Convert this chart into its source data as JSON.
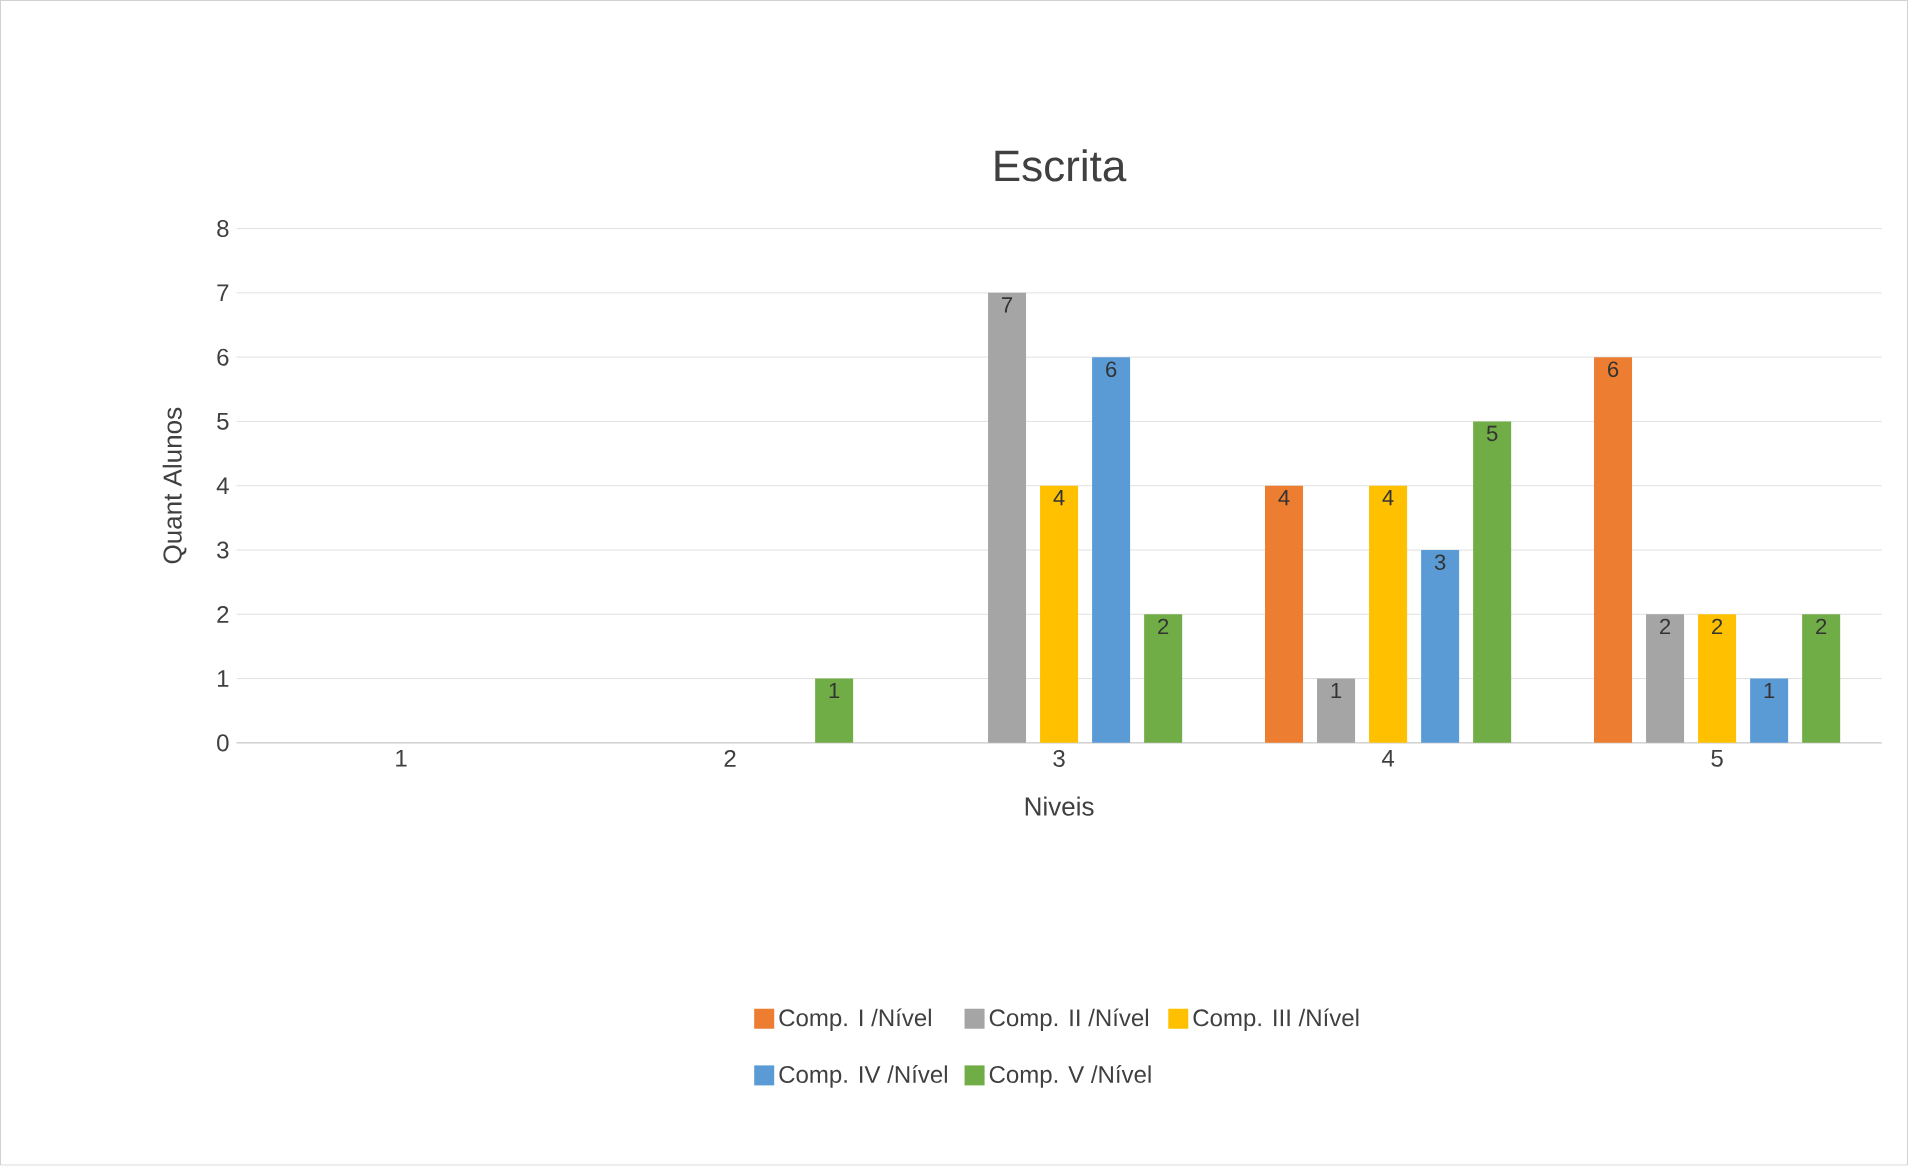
{
  "chart_data": {
    "type": "bar",
    "title": "Escrita",
    "xlabel": "Niveis",
    "ylabel": "Quant Alunos",
    "categories": [
      "1",
      "2",
      "3",
      "4",
      "5"
    ],
    "series": [
      {
        "name": "Comp. I /Nível",
        "color": "#ed7d31",
        "values": [
          0,
          0,
          0,
          4,
          6
        ],
        "value_labels": [
          null,
          null,
          null,
          "4",
          "6"
        ]
      },
      {
        "name": "Comp. II /Nível",
        "color": "#a5a5a5",
        "values": [
          0,
          0,
          7,
          1,
          2
        ],
        "value_labels": [
          null,
          null,
          "7",
          "1",
          "2"
        ]
      },
      {
        "name": "Comp. III /Nível",
        "color": "#ffc000",
        "values": [
          0,
          0,
          4,
          4,
          2
        ],
        "value_labels": [
          null,
          null,
          "4",
          "4",
          "2"
        ]
      },
      {
        "name": "Comp. IV /Nível",
        "color": "#5b9bd5",
        "values": [
          0,
          0,
          6,
          3,
          1
        ],
        "value_labels": [
          null,
          null,
          "6",
          "3",
          "1"
        ]
      },
      {
        "name": "Comp. V /Nível",
        "color": "#70ad47",
        "values": [
          0,
          1,
          2,
          5,
          2
        ],
        "value_labels": [
          null,
          "1",
          "2",
          "5",
          "2"
        ]
      }
    ],
    "ylim": [
      0,
      8
    ],
    "yticks": [
      0,
      1,
      2,
      3,
      4,
      5,
      6,
      7,
      8
    ],
    "grid": "y",
    "legend": "bottom"
  }
}
